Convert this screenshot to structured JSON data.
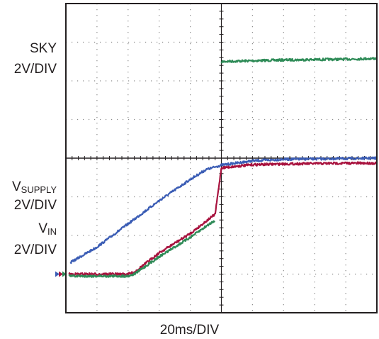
{
  "labels": {
    "sky_name": "SKY",
    "sky_scale": "2V/DIV",
    "vsupply_prefix": "V",
    "vsupply_sub": "SUPPLY",
    "vsupply_scale": "2V/DIV",
    "vin_prefix": "V",
    "vin_sub": "IN",
    "vin_scale": "2V/DIV",
    "x_axis": "20ms/DIV"
  },
  "chart_data": {
    "type": "line",
    "xlabel": "20ms/DIV",
    "x_unit": "divisions",
    "y_unit": "divisions",
    "xlim": [
      0,
      10
    ],
    "ylim": [
      -4,
      4
    ],
    "grid": true,
    "series": [
      {
        "name": "SKY",
        "color": "#2e8b57",
        "x": [
          5.0,
          5.02,
          6,
          7,
          8,
          9,
          10
        ],
        "y": [
          2.47,
          2.5,
          2.52,
          2.54,
          2.55,
          2.56,
          2.58
        ]
      },
      {
        "name": "VSUPPLY",
        "color": "#3b5db5",
        "x": [
          0.15,
          1,
          2,
          3,
          4,
          4.5,
          5.0,
          6,
          7,
          8,
          9,
          10
        ],
        "y": [
          -2.7,
          -2.3,
          -1.7,
          -1.1,
          -0.55,
          -0.3,
          -0.18,
          -0.07,
          -0.03,
          -0.02,
          -0.01,
          0.0
        ]
      },
      {
        "name": "VIN",
        "color": "#a8123e",
        "x": [
          0.1,
          1,
          2,
          2.2,
          3,
          4,
          4.8,
          5.0,
          6,
          7,
          8,
          9,
          10
        ],
        "y": [
          -3.0,
          -3.0,
          -3.0,
          -2.95,
          -2.45,
          -1.95,
          -1.45,
          -0.25,
          -0.17,
          -0.15,
          -0.14,
          -0.13,
          -0.13
        ]
      },
      {
        "name": "VIN (overlay)",
        "color": "#2e8b57",
        "x": [
          0.1,
          1,
          2,
          2.2,
          3,
          4,
          4.8
        ],
        "y": [
          -3.05,
          -3.05,
          -3.05,
          -3.0,
          -2.55,
          -2.05,
          -1.6
        ]
      }
    ],
    "ground_marker_colors": [
      "#3b5db5",
      "#a8123e",
      "#2e8b57"
    ]
  }
}
